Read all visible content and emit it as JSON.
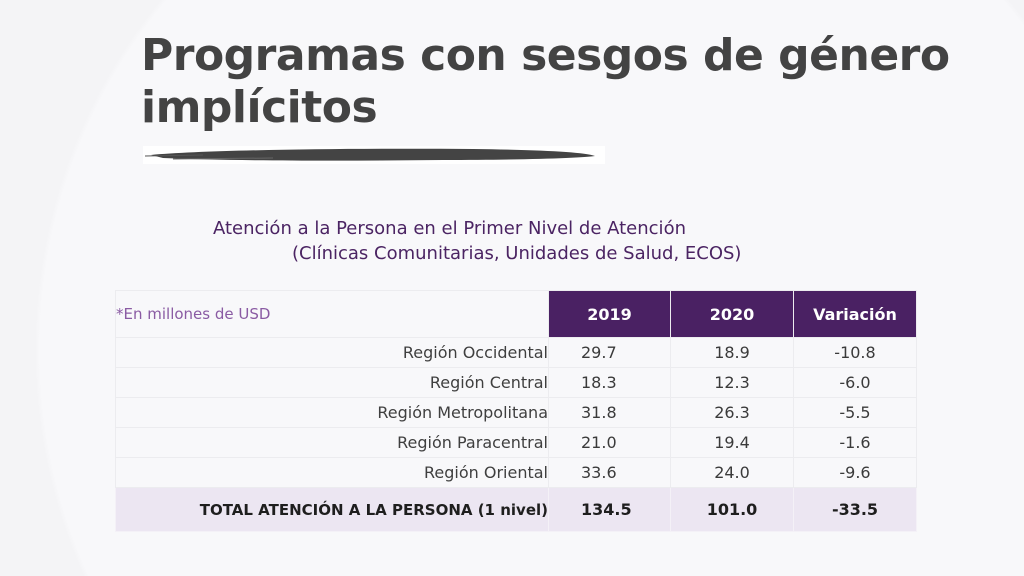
{
  "slide": {
    "title": "Programas con sesgos de género implícitos",
    "subtitle_line1": "Atención a la Persona en el Primer Nivel de Atención",
    "subtitle_line2": "(Clínicas Comunitarias, Unidades de Salud, ECOS)",
    "colors": {
      "title": "#434343",
      "accent_purple": "#4a2163",
      "note_purple": "#8a5ba3",
      "total_row_bg": "#ece6f2"
    }
  },
  "table": {
    "note": "*En millones de USD",
    "headers": [
      "2019",
      "2020",
      "Variación"
    ],
    "rows": [
      {
        "label": "Región Occidental",
        "v2019": "29.7",
        "v2020": "18.9",
        "variation": "-10.8"
      },
      {
        "label": "Región Central",
        "v2019": "18.3",
        "v2020": "12.3",
        "variation": "-6.0"
      },
      {
        "label": "Región Metropolitana",
        "v2019": "31.8",
        "v2020": "26.3",
        "variation": "-5.5"
      },
      {
        "label": "Región Paracentral",
        "v2019": "21.0",
        "v2020": "19.4",
        "variation": "-1.6"
      },
      {
        "label": "Región Oriental",
        "v2019": "33.6",
        "v2020": "24.0",
        "variation": "-9.6"
      }
    ],
    "total": {
      "label": "TOTAL ATENCIÓN A LA PERSONA (1 nivel)",
      "v2019": "134.5",
      "v2020": "101.0",
      "variation": "-33.5"
    }
  }
}
